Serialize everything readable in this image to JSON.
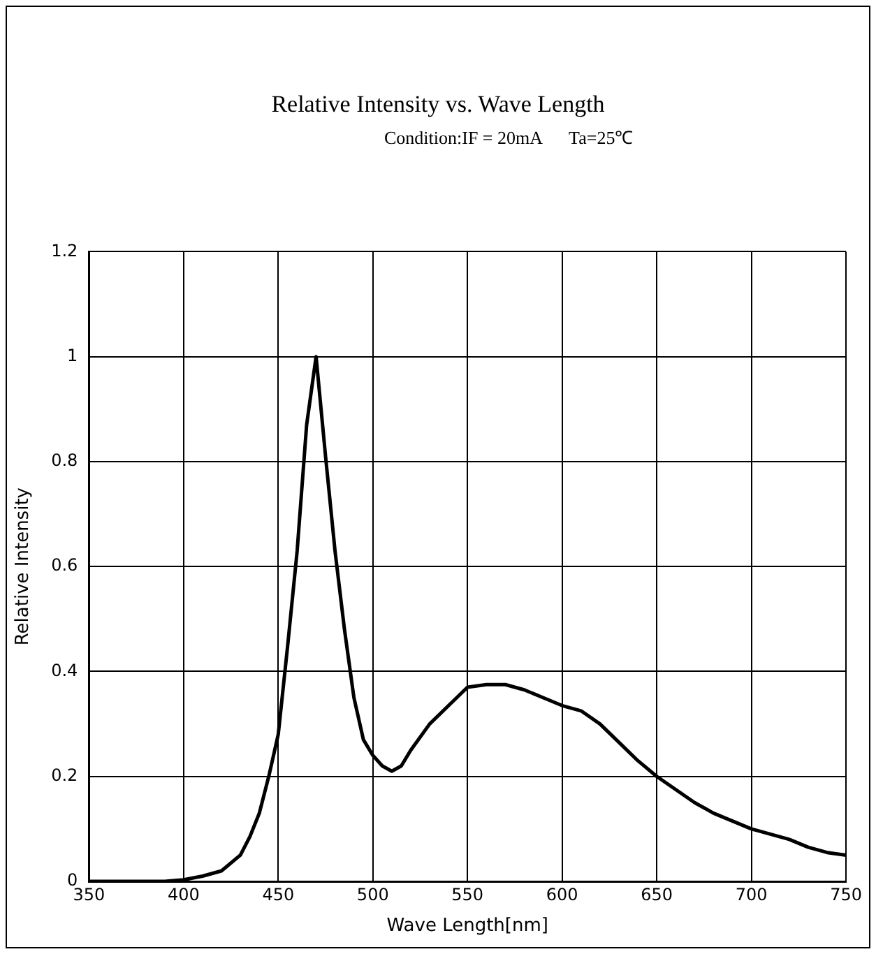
{
  "chart_data": {
    "type": "line",
    "title": "Relative Intensity vs. Wave Length",
    "subtitle": "Condition:IF = 20mA      Ta=25℃",
    "xlabel": "Wave Length[nm]",
    "ylabel": "Relative Intensity",
    "x": [
      350,
      370,
      390,
      400,
      410,
      420,
      430,
      435,
      440,
      445,
      450,
      455,
      460,
      465,
      470,
      475,
      480,
      485,
      490,
      495,
      500,
      505,
      510,
      515,
      520,
      530,
      540,
      550,
      560,
      570,
      580,
      590,
      600,
      610,
      620,
      630,
      640,
      650,
      660,
      670,
      680,
      690,
      700,
      710,
      720,
      730,
      740,
      750
    ],
    "series": [
      {
        "color": "#000000",
        "values": [
          0,
          0,
          0,
          0.003,
          0.01,
          0.02,
          0.05,
          0.085,
          0.13,
          0.2,
          0.28,
          0.45,
          0.63,
          0.87,
          1.0,
          0.81,
          0.63,
          0.48,
          0.35,
          0.27,
          0.24,
          0.22,
          0.21,
          0.22,
          0.25,
          0.3,
          0.335,
          0.37,
          0.375,
          0.375,
          0.365,
          0.35,
          0.335,
          0.325,
          0.3,
          0.265,
          0.23,
          0.2,
          0.175,
          0.15,
          0.13,
          0.115,
          0.1,
          0.09,
          0.08,
          0.065,
          0.055,
          0.05
        ]
      }
    ],
    "xlim": [
      350,
      750
    ],
    "xticks": [
      350,
      400,
      450,
      500,
      550,
      600,
      650,
      700,
      750
    ],
    "ylim": [
      0,
      1.2
    ],
    "yticks": [
      0,
      0.2,
      0.4,
      0.6,
      0.8,
      1,
      1.2
    ],
    "grid": true,
    "legend": false,
    "marker": "none",
    "line_style": "solid"
  }
}
